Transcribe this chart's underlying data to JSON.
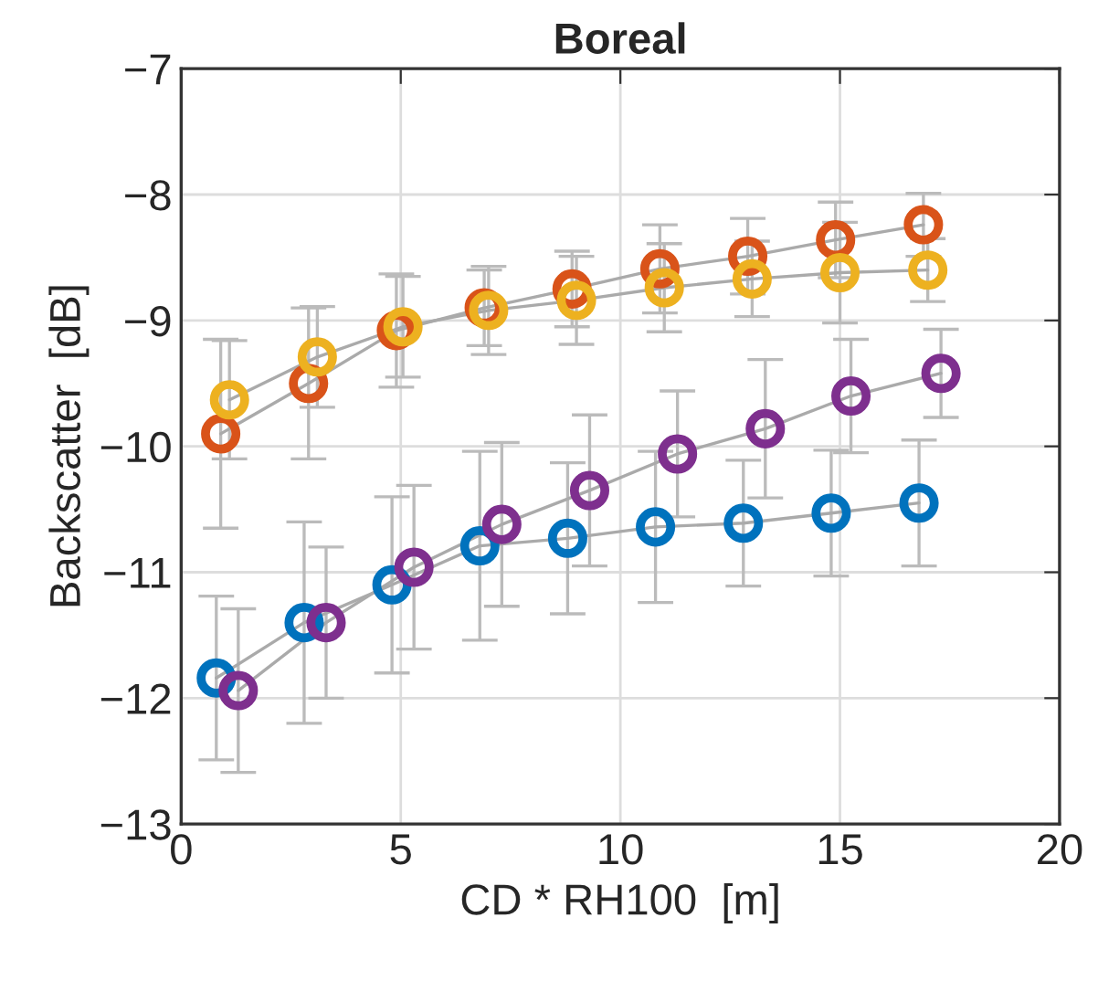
{
  "chart_data": {
    "type": "line",
    "title": "Boreal",
    "xlabel": "CD * RH100  [m]",
    "ylabel": "Backscatter  [dB]",
    "xlim": [
      0,
      20
    ],
    "xticks": [
      0,
      5,
      10,
      15,
      20
    ],
    "ylim": [
      -13,
      -7
    ],
    "yticks": [
      -13,
      -12,
      -11,
      -10,
      -9,
      -8,
      -7
    ],
    "grid": true,
    "marker": "circle",
    "line_style": "solid",
    "series": [
      {
        "color": "#0072bd",
        "x": [
          0.8,
          2.8,
          4.8,
          6.8,
          8.8,
          10.8,
          12.8,
          14.8,
          16.8
        ],
        "values": [
          -11.84,
          -11.4,
          -11.1,
          -10.79,
          -10.73,
          -10.64,
          -10.61,
          -10.53,
          -10.45
        ],
        "errors": [
          0.65,
          0.8,
          0.7,
          0.75,
          0.6,
          0.6,
          0.5,
          0.5,
          0.5
        ]
      },
      {
        "color": "#d95319",
        "x": [
          0.9,
          2.9,
          4.9,
          6.9,
          8.9,
          10.9,
          12.9,
          14.9,
          16.9
        ],
        "values": [
          -9.9,
          -9.5,
          -9.08,
          -8.9,
          -8.75,
          -8.59,
          -8.49,
          -8.36,
          -8.24
        ],
        "errors": [
          0.75,
          0.6,
          0.45,
          0.3,
          0.3,
          0.35,
          0.3,
          0.3,
          0.25
        ]
      },
      {
        "color": "#edb120",
        "x": [
          1.1,
          3.1,
          5.05,
          7.0,
          9.0,
          11.0,
          13.0,
          15.0,
          17.0
        ],
        "values": [
          -9.63,
          -9.29,
          -9.05,
          -8.92,
          -8.84,
          -8.74,
          -8.67,
          -8.62,
          -8.6
        ],
        "errors": [
          0.47,
          0.4,
          0.4,
          0.35,
          0.35,
          0.35,
          0.3,
          0.4,
          0.25
        ]
      },
      {
        "color": "#7e2f8e",
        "x": [
          1.3,
          3.3,
          5.3,
          7.3,
          9.3,
          11.3,
          13.3,
          15.25,
          17.3
        ],
        "values": [
          -11.94,
          -11.4,
          -10.96,
          -10.62,
          -10.35,
          -10.06,
          -9.86,
          -9.6,
          -9.42
        ],
        "errors": [
          0.65,
          0.6,
          0.65,
          0.65,
          0.6,
          0.5,
          0.55,
          0.45,
          0.35
        ]
      }
    ]
  }
}
